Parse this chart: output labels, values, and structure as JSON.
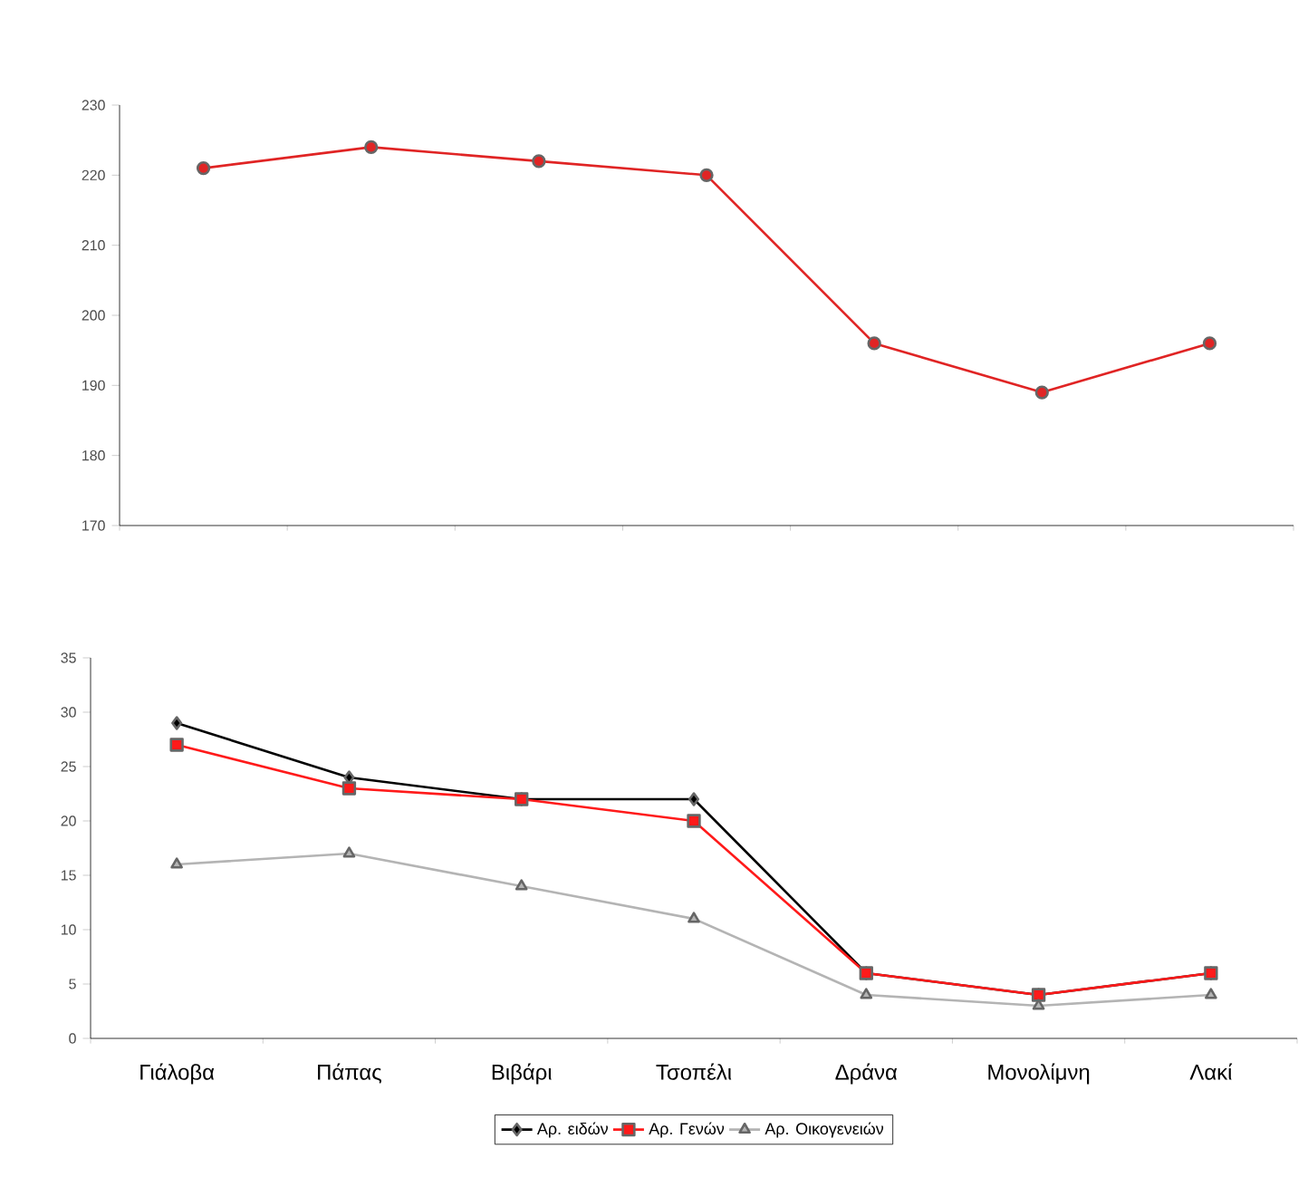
{
  "chart_data": [
    {
      "type": "line",
      "categories": [
        null,
        null,
        null,
        null,
        null,
        null,
        null
      ],
      "ylim": [
        170,
        230
      ],
      "yticks": [
        170,
        180,
        190,
        200,
        210,
        220,
        230
      ],
      "tick_labels": "y",
      "marker": "circle",
      "grid": false,
      "legend": false,
      "series": [
        {
          "color": "#e02424",
          "values": [
            221,
            224,
            222,
            220,
            196,
            189,
            196
          ]
        }
      ]
    },
    {
      "type": "line",
      "categories": [
        "Γιάλοβα",
        "Πάπας",
        "Βιβάρι",
        "Τσοπέλι",
        "Δράνα",
        "Μονολίμνη",
        "Λακί"
      ],
      "ylim": [
        0,
        35
      ],
      "yticks": [
        0,
        5,
        10,
        15,
        20,
        25,
        30,
        35
      ],
      "grid": false,
      "legend": "bottom",
      "series": [
        {
          "name": "Αρ. ειδών",
          "color": "#000000",
          "marker": "diamond",
          "values": [
            29,
            24,
            22,
            22,
            6,
            4,
            6
          ]
        },
        {
          "name": "Αρ. Γενών",
          "color": "#ff1a1a",
          "marker": "square",
          "values": [
            27,
            23,
            22,
            20,
            6,
            4,
            6
          ]
        },
        {
          "name": "Αρ. Οικογενειών",
          "color": "#b4b4b4",
          "marker": "triangle",
          "values": [
            16,
            17,
            14,
            11,
            4,
            3,
            4
          ]
        }
      ]
    }
  ]
}
